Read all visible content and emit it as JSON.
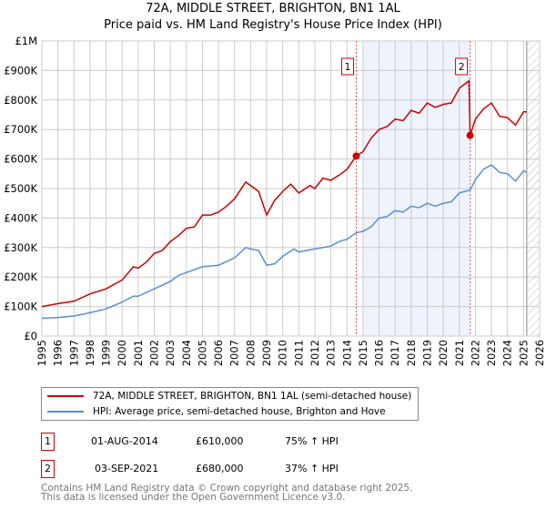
{
  "title": "72A, MIDDLE STREET, BRIGHTON, BN1 1AL",
  "subtitle": "Price paid vs. HM Land Registry's House Price Index (HPI)",
  "chart_data": {
    "type": "line",
    "xlim": [
      1995,
      2026
    ],
    "ylim": [
      0,
      1000000
    ],
    "yticks": [
      {
        "v": 0,
        "label": "£0"
      },
      {
        "v": 100000,
        "label": "£100K"
      },
      {
        "v": 200000,
        "label": "£200K"
      },
      {
        "v": 300000,
        "label": "£300K"
      },
      {
        "v": 400000,
        "label": "£400K"
      },
      {
        "v": 500000,
        "label": "£500K"
      },
      {
        "v": 600000,
        "label": "£600K"
      },
      {
        "v": 700000,
        "label": "£700K"
      },
      {
        "v": 800000,
        "label": "£800K"
      },
      {
        "v": 900000,
        "label": "£900K"
      },
      {
        "v": 1000000,
        "label": "£1M"
      }
    ],
    "xticks": [
      "1995",
      "1996",
      "1997",
      "1998",
      "1999",
      "2000",
      "2001",
      "2002",
      "2003",
      "2004",
      "2005",
      "2006",
      "2007",
      "2008",
      "2009",
      "2010",
      "2011",
      "2012",
      "2013",
      "2014",
      "2015",
      "2016",
      "2017",
      "2018",
      "2019",
      "2020",
      "2021",
      "2022",
      "2023",
      "2024",
      "2025",
      "2026"
    ],
    "shaded_range": [
      2015.0,
      2021.67
    ],
    "hatched_range": [
      2025.2,
      2026
    ],
    "series": [
      {
        "name": "72A, MIDDLE STREET, BRIGHTON, BN1 1AL (semi-detached house)",
        "color": "#cc0000",
        "x": [
          1995,
          1996,
          1997,
          1998,
          1999,
          2000,
          2000.7,
          2001,
          2001.5,
          2002,
          2002.5,
          2003,
          2003.5,
          2004,
          2004.5,
          2005,
          2005.5,
          2006,
          2006.5,
          2007,
          2007.7,
          2008,
          2008.5,
          2009,
          2009.5,
          2010,
          2010.5,
          2011,
          2011.7,
          2012,
          2012.5,
          2013,
          2013.5,
          2014,
          2014.58,
          2015,
          2015.5,
          2016,
          2016.5,
          2017,
          2017.5,
          2018,
          2018.5,
          2019,
          2019.5,
          2020,
          2020.5,
          2021,
          2021.6,
          2021.67,
          2022,
          2022.5,
          2023,
          2023.5,
          2024,
          2024.5,
          2025,
          2025.2
        ],
        "y": [
          100000,
          110000,
          118000,
          143000,
          160000,
          190000,
          235000,
          230000,
          250000,
          280000,
          290000,
          320000,
          340000,
          365000,
          370000,
          410000,
          410000,
          420000,
          440000,
          465000,
          522000,
          510000,
          490000,
          410000,
          460000,
          490000,
          515000,
          485000,
          510000,
          500000,
          535000,
          528000,
          545000,
          565000,
          610000,
          625000,
          670000,
          700000,
          710000,
          735000,
          730000,
          765000,
          755000,
          790000,
          775000,
          785000,
          790000,
          840000,
          865000,
          680000,
          735000,
          770000,
          790000,
          745000,
          740000,
          715000,
          760000,
          760000
        ]
      },
      {
        "name": "HPI: Average price, semi-detached house, Brighton and Hove",
        "color": "#5b8fd0",
        "x": [
          1995,
          1996,
          1997,
          1998,
          1999,
          2000,
          2000.7,
          2001,
          2002,
          2003,
          2003.5,
          2004,
          2005,
          2006,
          2007,
          2007.7,
          2008,
          2008.5,
          2009,
          2009.5,
          2010,
          2010.7,
          2011,
          2012,
          2013,
          2013.5,
          2014,
          2014.58,
          2015,
          2015.5,
          2016,
          2016.5,
          2017,
          2017.5,
          2018,
          2018.5,
          2019,
          2019.5,
          2020,
          2020.5,
          2021,
          2021.67,
          2022,
          2022.5,
          2023,
          2023.5,
          2024,
          2024.5,
          2025,
          2025.2
        ],
        "y": [
          60000,
          63000,
          68000,
          79000,
          92000,
          115000,
          135000,
          135000,
          160000,
          185000,
          205000,
          215000,
          235000,
          240000,
          265000,
          300000,
          295000,
          290000,
          240000,
          245000,
          270000,
          295000,
          285000,
          295000,
          305000,
          320000,
          328000,
          350000,
          355000,
          370000,
          400000,
          405000,
          425000,
          420000,
          440000,
          435000,
          450000,
          440000,
          450000,
          455000,
          485000,
          495000,
          530000,
          565000,
          580000,
          555000,
          550000,
          525000,
          560000,
          555000
        ]
      }
    ],
    "sales": [
      {
        "label": "1",
        "x": 2014.58,
        "y": 610000
      },
      {
        "label": "2",
        "x": 2021.67,
        "y": 680000
      }
    ]
  },
  "legend": [
    "72A, MIDDLE STREET, BRIGHTON, BN1 1AL (semi-detached house)",
    "HPI: Average price, semi-detached house, Brighton and Hove"
  ],
  "transactions": [
    {
      "num": "1",
      "date": "01-AUG-2014",
      "price": "£610,000",
      "hpi": "75% ↑ HPI"
    },
    {
      "num": "2",
      "date": "03-SEP-2021",
      "price": "£680,000",
      "hpi": "37% ↑ HPI"
    }
  ],
  "footer": [
    "Contains HM Land Registry data © Crown copyright and database right 2025.",
    "This data is licensed under the Open Government Licence v3.0."
  ]
}
